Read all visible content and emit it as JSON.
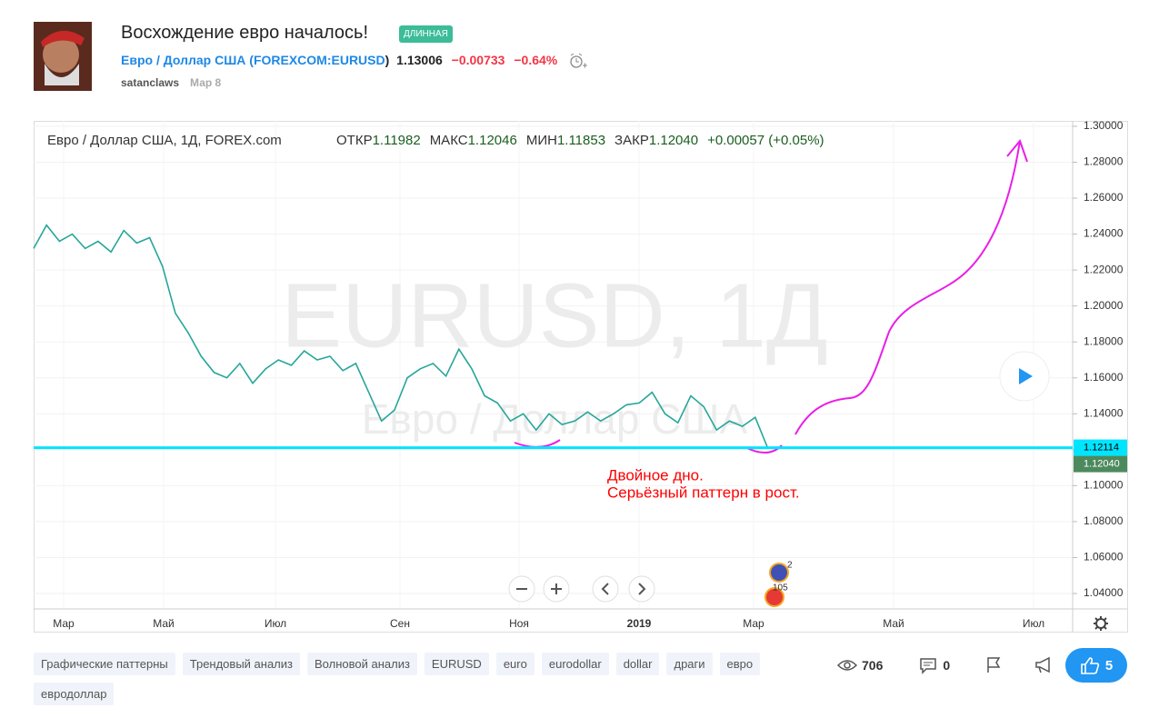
{
  "header": {
    "title": "Восхождение евро началось!",
    "badge": "ДЛИННАЯ",
    "symbol_name": "Евро / Доллар США",
    "symbol_code": "FOREXCOM:EURUSD",
    "price": "1.13006",
    "change": "−0.00733",
    "change_pct": "−0.64%",
    "author": "satanclaws",
    "date": "Мар 8"
  },
  "chart_data": {
    "type": "line",
    "legend_title": "Евро / Доллар США, 1Д, FOREX.com",
    "ohlc": [
      {
        "label": "ОТКР",
        "value": "1.11982"
      },
      {
        "label": "МАКС",
        "value": "1.12046"
      },
      {
        "label": "МИН",
        "value": "1.11853"
      },
      {
        "label": "ЗАКР",
        "value": "1.12040"
      }
    ],
    "change_text": "+0.00057 (+0.05%)",
    "watermark": "EURUSD, 1Д",
    "watermark_sub": "Евро / Доллар США",
    "color": "#26a69a",
    "values": [
      1.232,
      1.245,
      1.236,
      1.24,
      1.232,
      1.236,
      1.23,
      1.242,
      1.235,
      1.238,
      1.222,
      1.196,
      1.185,
      1.172,
      1.163,
      1.16,
      1.168,
      1.157,
      1.165,
      1.17,
      1.167,
      1.175,
      1.17,
      1.172,
      1.164,
      1.168,
      1.152,
      1.136,
      1.142,
      1.16,
      1.165,
      1.168,
      1.161,
      1.176,
      1.165,
      1.15,
      1.146,
      1.136,
      1.14,
      1.131,
      1.14,
      1.134,
      1.136,
      1.141,
      1.136,
      1.14,
      1.145,
      1.146,
      1.152,
      1.14,
      1.135,
      1.15,
      1.144,
      1.131,
      1.136,
      1.133,
      1.138,
      1.1204
    ],
    "xtick_labels": [
      "Мар",
      "Май",
      "Июл",
      "Сен",
      "Ноя",
      "2019",
      "Мар",
      "Май",
      "Июл"
    ],
    "ylim": [
      1.0314,
      1.303
    ],
    "yticks": [
      {
        "value": 1.04,
        "label": "1.04000"
      },
      {
        "value": 1.06,
        "label": "1.06000"
      },
      {
        "value": 1.08,
        "label": "1.08000"
      },
      {
        "value": 1.1,
        "label": "1.10000"
      },
      {
        "value": 1.12,
        "label": "1.12000"
      },
      {
        "value": 1.14,
        "label": "1.14000"
      },
      {
        "value": 1.16,
        "label": "1.16000"
      },
      {
        "value": 1.18,
        "label": "1.18000"
      },
      {
        "value": 1.2,
        "label": "1.20000"
      },
      {
        "value": 1.22,
        "label": "1.22000"
      },
      {
        "value": 1.24,
        "label": "1.24000"
      },
      {
        "value": 1.26,
        "label": "1.26000"
      },
      {
        "value": 1.28,
        "label": "1.28000"
      },
      {
        "value": 1.3,
        "label": "1.30000"
      }
    ],
    "level": 1.12114,
    "level_color": "#00e5ff",
    "last_price": {
      "value": 1.1204,
      "label": "1.12040"
    },
    "annotation": [
      "Двойное дно.",
      "Серьёзный паттерн в рост."
    ],
    "grid": true
  },
  "events": [
    "2",
    "105"
  ],
  "tags": [
    "Графические паттерны",
    "Трендовый анализ",
    "Волновой анализ",
    "EURUSD",
    "euro",
    "eurodollar",
    "dollar",
    "драги",
    "евро",
    "евродоллар"
  ],
  "stats": {
    "views": "706",
    "comments": "0",
    "likes": "5"
  }
}
